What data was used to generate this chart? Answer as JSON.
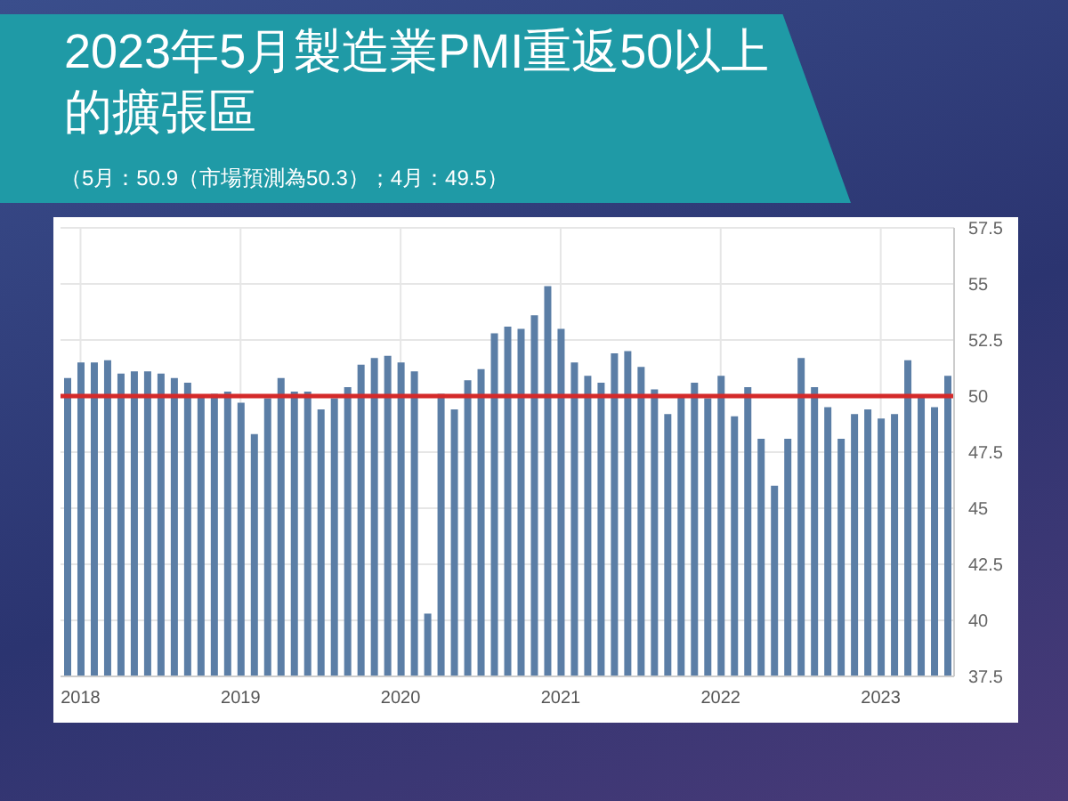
{
  "chart_data": {
    "type": "bar",
    "title": "2023年5月製造業PMI重返50以上的擴張區",
    "subtitle": "（5月：50.9（市場預測為50.3）；4月：49.5）",
    "categories": [
      null,
      "2018",
      null,
      null,
      null,
      null,
      null,
      null,
      null,
      null,
      null,
      null,
      null,
      "2019",
      null,
      null,
      null,
      null,
      null,
      null,
      null,
      null,
      null,
      null,
      null,
      "2020",
      null,
      null,
      null,
      null,
      null,
      null,
      null,
      null,
      null,
      null,
      null,
      "2021",
      null,
      null,
      null,
      null,
      null,
      null,
      null,
      null,
      null,
      null,
      null,
      "2022",
      null,
      null,
      null,
      null,
      null,
      null,
      null,
      null,
      null,
      null,
      null,
      "2023",
      null,
      null,
      null,
      null,
      null
    ],
    "values": [
      50.8,
      51.5,
      51.5,
      51.6,
      51.0,
      51.1,
      51.1,
      51.0,
      50.8,
      50.6,
      50.0,
      50.1,
      50.2,
      49.7,
      48.3,
      49.9,
      50.8,
      50.2,
      50.2,
      49.4,
      49.9,
      50.4,
      51.4,
      51.7,
      51.8,
      51.5,
      51.1,
      40.3,
      50.1,
      49.4,
      50.7,
      51.2,
      52.8,
      53.1,
      53.0,
      53.6,
      54.9,
      53.0,
      51.5,
      50.9,
      50.6,
      51.9,
      52.0,
      51.3,
      50.3,
      49.2,
      50.0,
      50.6,
      49.9,
      50.9,
      49.1,
      50.4,
      48.1,
      46.0,
      48.1,
      51.7,
      50.4,
      49.5,
      48.1,
      49.2,
      49.4,
      49.0,
      49.2,
      51.6,
      50.0,
      49.5,
      50.9
    ],
    "color": "#5b7ea6",
    "ylim": [
      37.5,
      57.5
    ],
    "yticks": [
      37.5,
      40,
      42.5,
      45,
      47.5,
      50,
      52.5,
      55,
      57.5
    ],
    "grid": true,
    "ref_lines": [
      {
        "axis": "y",
        "value": 50,
        "color": "#d42a2a"
      }
    ]
  }
}
